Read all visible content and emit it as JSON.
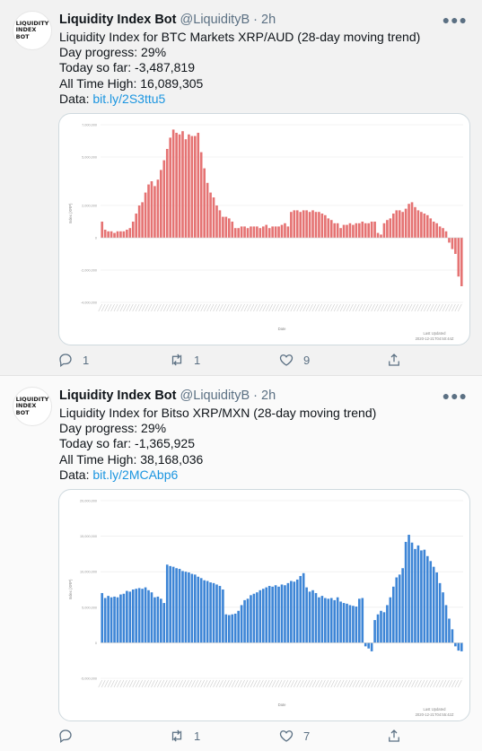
{
  "tweets": [
    {
      "avatar_text": "LIQUIDITY\nINDEX\nBOT",
      "author_name": "Liquidity Index Bot",
      "author_handle": "@LiquidityB",
      "separator": "·",
      "time": "2h",
      "lines": [
        "Liquidity Index for BTC Markets XRP/AUD (28-day moving trend)",
        "Day progress: 29%",
        "Today so far: -3,487,819",
        "All Time High: 16,089,305"
      ],
      "data_label": "Data: ",
      "link": "bit.ly/2S3ttu5",
      "counts": {
        "reply": "1",
        "retweet": "1",
        "like": "9"
      }
    },
    {
      "avatar_text": "LIQUIDITY\nINDEX\nBOT",
      "author_name": "Liquidity Index Bot",
      "author_handle": "@LiquidityB",
      "separator": "·",
      "time": "2h",
      "lines": [
        "Liquidity Index for Bitso XRP/MXN (28-day moving trend)",
        "Day progress: 29%",
        "Today so far: -1,365,925",
        "All Time High: 38,168,036"
      ],
      "data_label": "Data: ",
      "link": "bit.ly/2MCAbp6",
      "counts": {
        "reply": "",
        "retweet": "1",
        "like": "7"
      }
    }
  ],
  "chart_data": [
    {
      "type": "bar",
      "color": "#e57373",
      "ylabel": "Index (XRP)",
      "xlabel": "Date",
      "footer": [
        "Last Updated",
        "2020-12-21T04:50:44Z"
      ],
      "yticks": [
        {
          "value": 7000000,
          "label": "7,000,000"
        },
        {
          "value": 5000000,
          "label": "5,000,000"
        },
        {
          "value": 2000000,
          "label": "2,000,000"
        },
        {
          "value": 0,
          "label": "0"
        },
        {
          "value": -2000000,
          "label": "-2,000,000"
        },
        {
          "value": -4000000,
          "label": "-4,000,000"
        }
      ],
      "ylim": [
        -4000000,
        7000000
      ],
      "values": [
        1000000,
        500000,
        400000,
        400000,
        300000,
        400000,
        400000,
        400000,
        500000,
        600000,
        1000000,
        1500000,
        2000000,
        2200000,
        2800000,
        3300000,
        3500000,
        3200000,
        3600000,
        4200000,
        4800000,
        5500000,
        6200000,
        6700000,
        6500000,
        6400000,
        6600000,
        6100000,
        6400000,
        6300000,
        6300000,
        6500000,
        5300000,
        4300000,
        3400000,
        2800000,
        2500000,
        2000000,
        1700000,
        1300000,
        1300000,
        1200000,
        1000000,
        600000,
        600000,
        700000,
        700000,
        600000,
        700000,
        700000,
        700000,
        600000,
        700000,
        800000,
        600000,
        700000,
        700000,
        700000,
        800000,
        900000,
        700000,
        1600000,
        1700000,
        1700000,
        1600000,
        1700000,
        1700000,
        1600000,
        1700000,
        1600000,
        1600000,
        1500000,
        1400000,
        1200000,
        1100000,
        900000,
        900000,
        600000,
        800000,
        800000,
        900000,
        800000,
        900000,
        900000,
        1000000,
        900000,
        900000,
        1000000,
        1000000,
        300000,
        200000,
        900000,
        1100000,
        1200000,
        1500000,
        1700000,
        1700000,
        1600000,
        1800000,
        2100000,
        2200000,
        1900000,
        1700000,
        1600000,
        1500000,
        1400000,
        1200000,
        1000000,
        900000,
        700000,
        600000,
        400000,
        -300000,
        -700000,
        -1000000,
        -2400000,
        -3000000
      ]
    },
    {
      "type": "bar",
      "color": "#3d85d6",
      "ylabel": "Index (XRP)",
      "xlabel": "Date",
      "footer": [
        "Last Updated",
        "2020-12-21T04:55:42Z"
      ],
      "yticks": [
        {
          "value": 20000000,
          "label": "20,000,000"
        },
        {
          "value": 15000000,
          "label": "15,000,000"
        },
        {
          "value": 10000000,
          "label": "10,000,000"
        },
        {
          "value": 5000000,
          "label": "5,000,000"
        },
        {
          "value": 0,
          "label": "0"
        },
        {
          "value": -5000000,
          "label": "-5,000,000"
        }
      ],
      "ylim": [
        -5000000,
        20000000
      ],
      "values": [
        7000000,
        6300000,
        6600000,
        6400000,
        6500000,
        6400000,
        6800000,
        6900000,
        7300000,
        7200000,
        7500000,
        7600000,
        7700000,
        7600000,
        7800000,
        7400000,
        7100000,
        6400000,
        6500000,
        6200000,
        5600000,
        11000000,
        10800000,
        10700000,
        10500000,
        10400000,
        10100000,
        10000000,
        9900000,
        9700000,
        9600000,
        9300000,
        9100000,
        8800000,
        8700000,
        8500000,
        8400000,
        8200000,
        8000000,
        7500000,
        4000000,
        3900000,
        4000000,
        4100000,
        4500000,
        5300000,
        6000000,
        6200000,
        6700000,
        6900000,
        7100000,
        7400000,
        7600000,
        7800000,
        8000000,
        7900000,
        8100000,
        7900000,
        8200000,
        8100000,
        8400000,
        8700000,
        8600000,
        8900000,
        9400000,
        9800000,
        7800000,
        7200000,
        7400000,
        7000000,
        6400000,
        6600000,
        6300000,
        6200000,
        6300000,
        6000000,
        6400000,
        5800000,
        5600000,
        5500000,
        5300000,
        5200000,
        5100000,
        6200000,
        6300000,
        -500000,
        -800000,
        -1200000,
        3200000,
        4000000,
        4500000,
        4300000,
        5300000,
        6400000,
        7900000,
        9200000,
        9600000,
        10500000,
        14200000,
        15200000,
        14100000,
        13200000,
        13700000,
        13000000,
        13100000,
        12200000,
        11500000,
        10700000,
        9900000,
        8400000,
        7100000,
        5300000,
        3400000,
        1900000,
        -500000,
        -1100000,
        -1200000
      ]
    }
  ]
}
